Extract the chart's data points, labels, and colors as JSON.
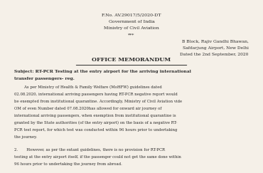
{
  "bg_color": "#f5f0e8",
  "text_color": "#2a2a2a",
  "header_lines": [
    "F.No. AV.29017/5/2020-DT",
    "Government of India",
    "Ministry of Civil Aviation",
    "***"
  ],
  "address_lines": [
    "B Block, Rajiv Gandhi Bhawan,",
    "Safdarjung Airport, New Delhi",
    "Dated the 2nd September, 2020"
  ],
  "title": "OFFICE MEMORANDUM",
  "subject_line1": "Subject: RT-PCR Testing at the entry airport for the arriving international",
  "subject_line2": "transfer passengers- reg.",
  "para1_lines": [
    "        As per Ministry of Health & Family Welfare (MoHFW) guidelines dated",
    "02.08.2020, international arriving passengers having RT-PCR negative report would",
    "be exempted from institutional quarantine. Accordingly, Ministry of Civil Aviation vide",
    "OM of even Number dated 07.08.2020has allowed for onward air journey of",
    "international arriving passengers, when exemption from institutional quarantine is",
    "granted by the State authorities (of the entry airport) on the basis of a negative RT-",
    "PCR test report, for which test was conducted within 96 hours prior to undertaking",
    "the journey."
  ],
  "para2_lines": [
    "2.       However, as per the extant guidelines, there is no provision for RT-PCR",
    "testing at the entry airport itself, if the passenger could not get the same done within",
    "96 hours prior to undertaking the journey from abroad."
  ]
}
